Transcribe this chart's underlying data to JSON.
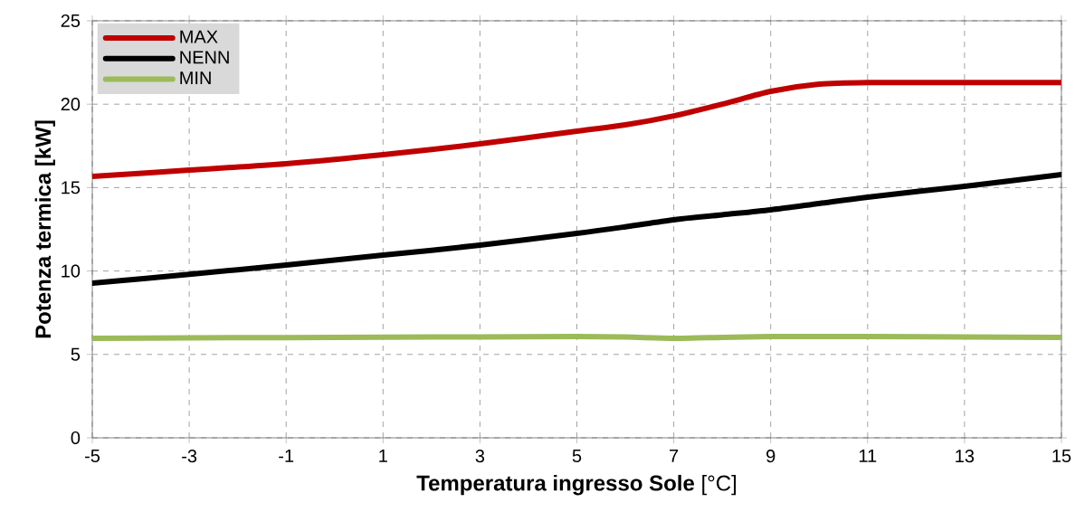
{
  "chart_data": {
    "type": "line",
    "xlabel": "**Temperatura ingresso Sole** [°C]",
    "ylabel": "Potenza termica [kW]",
    "x": [
      -5,
      -3,
      -1,
      1,
      3,
      5,
      6,
      7,
      8,
      9,
      10,
      11,
      13,
      15
    ],
    "series": [
      {
        "name": "MAX",
        "color": "#c00000",
        "values": [
          15.67,
          16.05,
          16.43,
          16.97,
          17.62,
          18.38,
          18.76,
          19.3,
          20.0,
          20.77,
          21.2,
          21.3,
          21.3,
          21.3
        ]
      },
      {
        "name": "NENN",
        "color": "#000000",
        "values": [
          9.27,
          9.8,
          10.36,
          10.95,
          11.55,
          12.26,
          12.65,
          13.07,
          13.37,
          13.67,
          14.05,
          14.43,
          15.08,
          15.78
        ]
      },
      {
        "name": "MIN",
        "color": "#9bbb59",
        "values": [
          5.97,
          5.99,
          6.01,
          6.03,
          6.05,
          6.07,
          6.04,
          5.97,
          6.02,
          6.07,
          6.07,
          6.07,
          6.05,
          6.02
        ]
      }
    ],
    "xlim": [
      -5,
      15
    ],
    "ylim": [
      0,
      25
    ],
    "xticks": [
      -5,
      -3,
      -1,
      1,
      3,
      5,
      7,
      9,
      11,
      13,
      15
    ],
    "yticks": [
      0,
      5,
      10,
      15,
      20,
      25
    ],
    "grid": true,
    "legend": "top left",
    "marker": "none",
    "line_style": "solid"
  }
}
